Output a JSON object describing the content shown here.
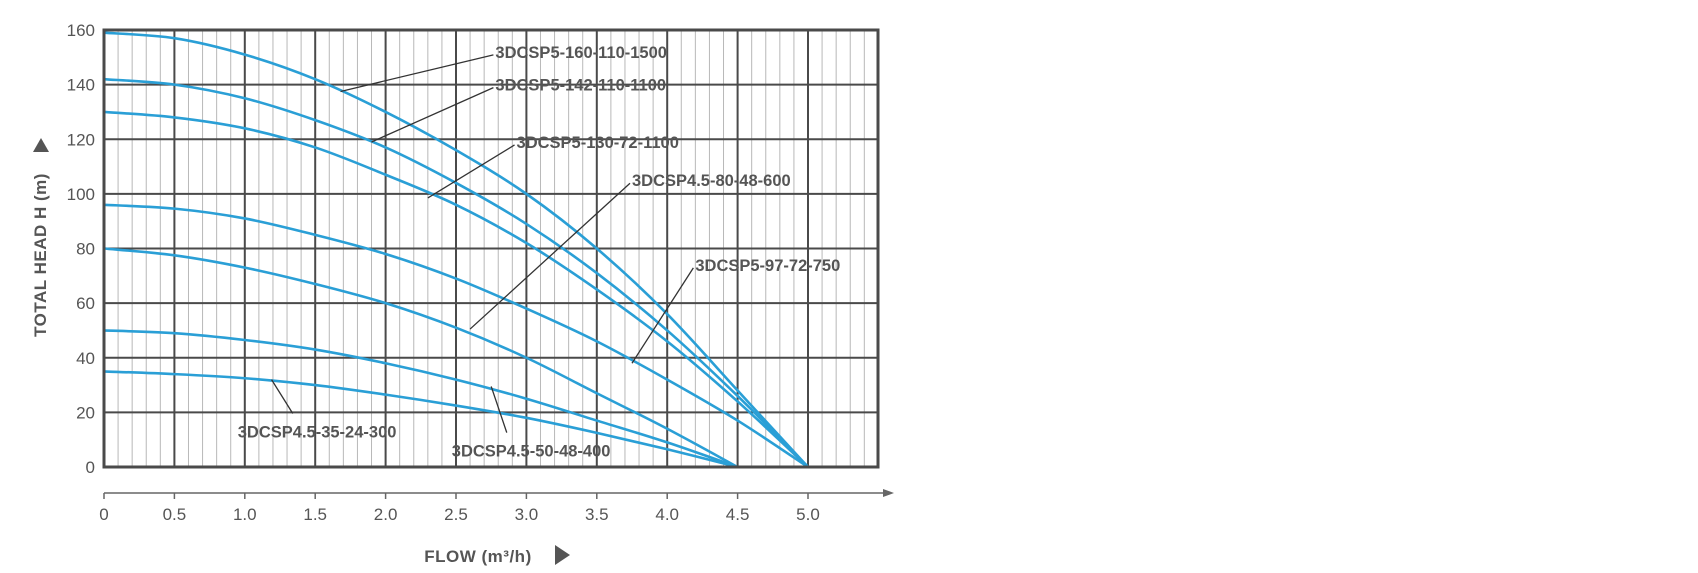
{
  "chart_data": {
    "type": "line",
    "xlabel": "FLOW (m³/h)",
    "ylabel": "TOTAL HEAD H (m)",
    "xlim": [
      0,
      5.0
    ],
    "ylim": [
      0,
      160
    ],
    "x_ticks": [
      "0",
      "0.5",
      "1.0",
      "1.5",
      "2.0",
      "2.5",
      "3.0",
      "3.5",
      "4.0",
      "4.5",
      "5.0"
    ],
    "y_ticks": [
      "0",
      "20",
      "40",
      "60",
      "80",
      "100",
      "120",
      "140",
      "160"
    ],
    "grid": true,
    "series": [
      {
        "name": "3DCSP5-160-110-1500",
        "x": [
          0,
          0.5,
          1.0,
          1.5,
          2.0,
          2.5,
          3.0,
          3.5,
          4.0,
          4.5,
          5.0
        ],
        "y": [
          159,
          157,
          151,
          142,
          130,
          116,
          100,
          80,
          56,
          28,
          0
        ]
      },
      {
        "name": "3DCSP5-142-110-1100",
        "x": [
          0,
          0.5,
          1.0,
          1.5,
          2.0,
          2.5,
          3.0,
          3.5,
          4.0,
          4.5,
          5.0
        ],
        "y": [
          142,
          140,
          135,
          127,
          117,
          104,
          89,
          71,
          50,
          26,
          0
        ]
      },
      {
        "name": "3DCSP5-130-72-1100",
        "x": [
          0,
          0.5,
          1.0,
          1.5,
          2.0,
          2.5,
          3.0,
          3.5,
          4.0,
          4.5,
          5.0
        ],
        "y": [
          130,
          128,
          124,
          117,
          107,
          96,
          82,
          65,
          46,
          24,
          0
        ]
      },
      {
        "name": "3DCSP5-97-72-750",
        "x": [
          0,
          0.5,
          1.0,
          1.5,
          2.0,
          2.5,
          3.0,
          3.5,
          4.0,
          4.5,
          5.0
        ],
        "y": [
          96,
          94.6,
          91,
          85,
          78,
          69,
          58,
          46,
          32,
          17,
          0
        ]
      },
      {
        "name": "3DCSP4.5-80-48-600",
        "x": [
          0,
          0.5,
          1.0,
          1.5,
          2.0,
          2.5,
          3.0,
          3.5,
          4.0,
          4.5
        ],
        "y": [
          80,
          77.5,
          73,
          67,
          60,
          51,
          40,
          27,
          14,
          0
        ]
      },
      {
        "name": "3DCSP4.5-50-48-400",
        "x": [
          0,
          0.5,
          1.0,
          1.5,
          2.0,
          2.5,
          3.0,
          3.5,
          4.0,
          4.5
        ],
        "y": [
          50,
          49,
          46.5,
          43,
          38,
          32,
          25,
          17,
          9,
          0
        ]
      },
      {
        "name": "3DCSP4.5-35-24-300",
        "x": [
          0,
          0.5,
          1.0,
          1.5,
          2.0,
          2.5,
          3.0,
          3.5,
          4.0,
          4.5
        ],
        "y": [
          35,
          34,
          32.5,
          30,
          26.5,
          22.5,
          18,
          12.5,
          6.5,
          0
        ]
      }
    ],
    "annotations": [
      {
        "series": 0,
        "text": "3DCSP5-160-110-1500",
        "point": [
          1.68,
          137.5
        ],
        "label_at": [
          2.78,
          152
        ]
      },
      {
        "series": 1,
        "text": "3DCSP5-142-110-1100",
        "point": [
          1.9,
          119
        ],
        "label_at": [
          2.78,
          140
        ]
      },
      {
        "series": 2,
        "text": "3DCSP5-130-72-1100",
        "point": [
          2.3,
          98.5
        ],
        "label_at": [
          2.93,
          119
        ]
      },
      {
        "series": 4,
        "text": "3DCSP4.5-80-48-600",
        "point": [
          2.6,
          50.5
        ],
        "label_at": [
          3.75,
          105
        ]
      },
      {
        "series": 3,
        "text": "3DCSP5-97-72-750",
        "point": [
          3.75,
          38
        ],
        "label_at": [
          4.2,
          74
        ]
      },
      {
        "series": 6,
        "text": "3DCSP4.5-35-24-300",
        "point": [
          1.19,
          32
        ],
        "label_at": [
          0.95,
          13
        ]
      },
      {
        "series": 5,
        "text": "3DCSP4.5-50-48-400",
        "point": [
          2.75,
          29.5
        ],
        "label_at": [
          2.47,
          6
        ]
      }
    ],
    "colors": {
      "curve": "#2a9fd6",
      "grid": "#4a4a4a",
      "minor_grid": "#b8b8b8",
      "text": "#555555",
      "leader": "#333333"
    }
  }
}
